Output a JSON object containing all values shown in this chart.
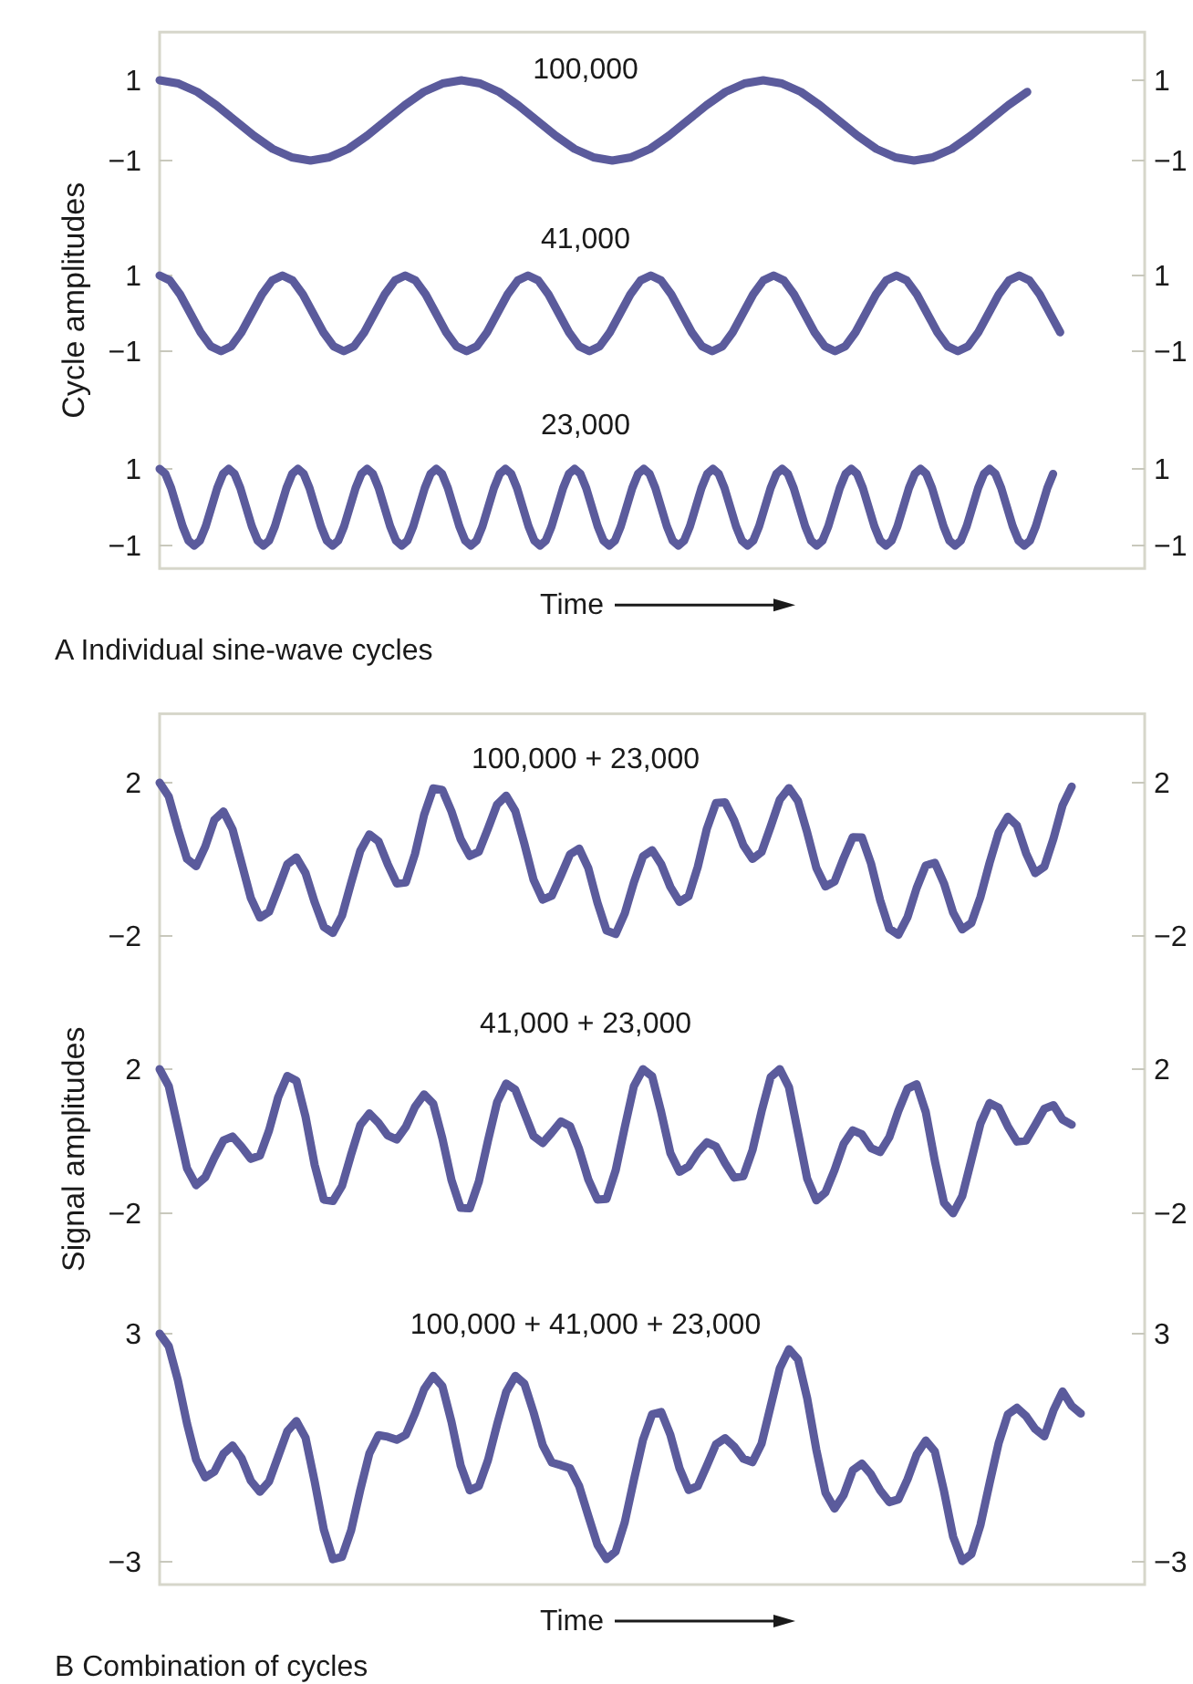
{
  "chart_data": [
    {
      "type": "line",
      "title": "100,000",
      "ylim": [
        -1,
        2.2
      ],
      "yticks": [
        -1,
        1
      ],
      "y2lim": [
        -1,
        2.2
      ],
      "y2ticks": [
        -1,
        1
      ],
      "categories": [
        null,
        null,
        null,
        null,
        null,
        null,
        null,
        null,
        null,
        null,
        null,
        null,
        null,
        null,
        null,
        null,
        null,
        null,
        null,
        null,
        null,
        null,
        null,
        null,
        null,
        null,
        null,
        null,
        null,
        null,
        null,
        null,
        null,
        null,
        null,
        null,
        null,
        null,
        null,
        null,
        null,
        null,
        null,
        null,
        null,
        null,
        null
      ],
      "series": [
        {
          "color": "#5b5b9c",
          "values": [
            1,
            0.92,
            0.71,
            0.38,
            0,
            -0.38,
            -0.71,
            -0.92,
            -1,
            -0.92,
            -0.71,
            -0.38,
            0,
            0.38,
            0.71,
            0.92,
            1,
            0.92,
            0.71,
            0.38,
            0,
            -0.38,
            -0.71,
            -0.92,
            -1,
            -0.92,
            -0.71,
            -0.38,
            0,
            0.38,
            0.71,
            0.92,
            1,
            0.92,
            0.71,
            0.38,
            0,
            -0.38,
            -0.71,
            -0.92,
            -1,
            -0.92,
            -0.71,
            -0.38,
            0,
            0.38,
            0.71
          ]
        }
      ]
    },
    {
      "type": "line",
      "title": "41,000",
      "ylabel": "Cycle amplitudes",
      "ylim": [
        -1,
        1
      ],
      "yticks": [
        -1,
        1
      ],
      "y2lim": [
        -1,
        1
      ],
      "y2ticks": [
        -1,
        1
      ],
      "categories": [
        null,
        null,
        null,
        null,
        null,
        null,
        null,
        null,
        null,
        null,
        null,
        null,
        null,
        null,
        null,
        null,
        null,
        null,
        null,
        null,
        null,
        null,
        null,
        null,
        null,
        null,
        null,
        null,
        null,
        null,
        null,
        null,
        null,
        null,
        null,
        null,
        null,
        null,
        null,
        null,
        null,
        null,
        null,
        null,
        null,
        null,
        null,
        null,
        null,
        null,
        null,
        null,
        null,
        null,
        null,
        null,
        null,
        null,
        null,
        null,
        null,
        null,
        null,
        null,
        null,
        null,
        null,
        null,
        null,
        null,
        null,
        null,
        null,
        null,
        null,
        null,
        null,
        null,
        null,
        null,
        null,
        null,
        null,
        null,
        null,
        null,
        null,
        null,
        null
      ],
      "series": [
        {
          "color": "#5b5b9c",
          "values": [
            1,
            0.87,
            0.5,
            0,
            -0.5,
            -0.87,
            -1,
            -0.87,
            -0.5,
            0,
            0.5,
            0.87,
            1,
            0.87,
            0.5,
            0,
            -0.5,
            -0.87,
            -1,
            -0.87,
            -0.5,
            0,
            0.5,
            0.87,
            1,
            0.87,
            0.5,
            0,
            -0.5,
            -0.87,
            -1,
            -0.87,
            -0.5,
            0,
            0.5,
            0.87,
            1,
            0.87,
            0.5,
            0,
            -0.5,
            -0.87,
            -1,
            -0.87,
            -0.5,
            0,
            0.5,
            0.87,
            1,
            0.87,
            0.5,
            0,
            -0.5,
            -0.87,
            -1,
            -0.87,
            -0.5,
            0,
            0.5,
            0.87,
            1,
            0.87,
            0.5,
            0,
            -0.5,
            -0.87,
            -1,
            -0.87,
            -0.5,
            0,
            0.5,
            0.87,
            1,
            0.87,
            0.5,
            0,
            -0.5,
            -0.87,
            -1,
            -0.87,
            -0.5,
            0,
            0.5,
            0.87,
            1,
            0.87,
            0.5,
            0,
            -0.5
          ]
        }
      ]
    },
    {
      "type": "line",
      "title": "23,000",
      "xlabel": "Time",
      "annotations": [
        "A Individual sine-wave cycles"
      ],
      "ylim": [
        -1.6,
        1
      ],
      "yticks": [
        -1,
        1
      ],
      "y2lim": [
        -1.6,
        1
      ],
      "y2ticks": [
        -1,
        1
      ],
      "categories": [
        null,
        null,
        null,
        null,
        null,
        null,
        null,
        null,
        null,
        null,
        null,
        null,
        null,
        null,
        null,
        null,
        null,
        null,
        null,
        null,
        null,
        null,
        null,
        null,
        null,
        null,
        null,
        null,
        null,
        null,
        null,
        null,
        null,
        null,
        null,
        null,
        null,
        null,
        null,
        null,
        null,
        null,
        null,
        null,
        null,
        null,
        null,
        null,
        null,
        null,
        null,
        null,
        null,
        null,
        null,
        null,
        null,
        null,
        null,
        null,
        null,
        null,
        null,
        null,
        null,
        null,
        null,
        null,
        null,
        null,
        null,
        null,
        null,
        null,
        null,
        null,
        null,
        null,
        null,
        null,
        null,
        null,
        null,
        null,
        null,
        null,
        null,
        null,
        null,
        null,
        null,
        null,
        null,
        null,
        null,
        null,
        null,
        null,
        null,
        null,
        null,
        null,
        null,
        null,
        null,
        null,
        null,
        null,
        null,
        null,
        null,
        null,
        null,
        null,
        null,
        null,
        null,
        null,
        null,
        null,
        null,
        null,
        null,
        null,
        null,
        null,
        null,
        null,
        null,
        null,
        null,
        null,
        null,
        null,
        null,
        null,
        null,
        null,
        null,
        null,
        null,
        null,
        null,
        null,
        null,
        null,
        null,
        null,
        null,
        null,
        null,
        null,
        null,
        null,
        null,
        null
      ],
      "series": [
        {
          "color": "#5b5b9c",
          "values": [
            1,
            0.87,
            0.5,
            0,
            -0.5,
            -0.87,
            -1,
            -0.87,
            -0.5,
            0,
            0.5,
            0.87,
            1,
            0.87,
            0.5,
            0,
            -0.5,
            -0.87,
            -1,
            -0.87,
            -0.5,
            0,
            0.5,
            0.87,
            1,
            0.87,
            0.5,
            0,
            -0.5,
            -0.87,
            -1,
            -0.87,
            -0.5,
            0,
            0.5,
            0.87,
            1,
            0.87,
            0.5,
            0,
            -0.5,
            -0.87,
            -1,
            -0.87,
            -0.5,
            0,
            0.5,
            0.87,
            1,
            0.87,
            0.5,
            0,
            -0.5,
            -0.87,
            -1,
            -0.87,
            -0.5,
            0,
            0.5,
            0.87,
            1,
            0.87,
            0.5,
            0,
            -0.5,
            -0.87,
            -1,
            -0.87,
            -0.5,
            0,
            0.5,
            0.87,
            1,
            0.87,
            0.5,
            0,
            -0.5,
            -0.87,
            -1,
            -0.87,
            -0.5,
            0,
            0.5,
            0.87,
            1,
            0.87,
            0.5,
            0,
            -0.5,
            -0.87,
            -1,
            -0.87,
            -0.5,
            0,
            0.5,
            0.87,
            1,
            0.87,
            0.5,
            0,
            -0.5,
            -0.87,
            -1,
            -0.87,
            -0.5,
            0,
            0.5,
            0.87,
            1,
            0.87,
            0.5,
            0,
            -0.5,
            -0.87,
            -1,
            -0.87,
            -0.5,
            0,
            0.5,
            0.87,
            1,
            0.87,
            0.5,
            0,
            -0.5,
            -0.87,
            -1,
            -0.87,
            -0.5,
            0,
            0.5,
            0.87,
            1,
            0.87,
            0.5,
            0,
            -0.5,
            -0.87,
            -1,
            -0.87,
            -0.5,
            0,
            0.5,
            0.87,
            1,
            0.87,
            0.5,
            0,
            -0.5,
            -0.87,
            -1,
            -0.87,
            -0.5,
            0,
            0.5,
            0.87
          ]
        }
      ]
    },
    {
      "type": "line",
      "title": "100,000 + 23,000",
      "ylim": [
        -2,
        3.8
      ],
      "yticks": [
        -2,
        2
      ],
      "y2lim": [
        -2,
        3.8
      ],
      "y2ticks": [
        -2,
        2
      ],
      "categories": [
        null,
        null,
        null,
        null,
        null,
        null,
        null,
        null,
        null,
        null,
        null,
        null,
        null,
        null,
        null,
        null,
        null,
        null,
        null,
        null,
        null,
        null,
        null,
        null,
        null,
        null,
        null,
        null,
        null,
        null,
        null,
        null,
        null,
        null,
        null,
        null,
        null,
        null,
        null,
        null,
        null,
        null,
        null,
        null,
        null,
        null,
        null,
        null,
        null,
        null,
        null,
        null,
        null,
        null,
        null,
        null,
        null,
        null,
        null,
        null,
        null,
        null,
        null,
        null,
        null,
        null,
        null,
        null,
        null,
        null,
        null,
        null,
        null,
        null,
        null,
        null,
        null,
        null,
        null,
        null,
        null,
        null,
        null,
        null,
        null,
        null,
        null,
        null,
        null,
        null,
        null,
        null,
        null,
        null,
        null,
        null,
        null,
        null,
        null,
        null,
        null
      ],
      "series": [
        {
          "color": "#5b5b9c",
          "values": [
            2,
            1.64,
            0.79,
            0.01,
            -0.18,
            0.33,
            1.03,
            1.25,
            0.78,
            -0.11,
            -1.01,
            -1.52,
            -1.37,
            -0.76,
            -0.13,
            0.05,
            -0.36,
            -1.12,
            -1.76,
            -1.92,
            -1.47,
            -0.61,
            0.22,
            0.65,
            0.47,
            -0.12,
            -0.63,
            -0.6,
            0.14,
            1.16,
            1.85,
            1.81,
            1.25,
            0.53,
            0.09,
            0.2,
            0.8,
            1.43,
            1.66,
            1.26,
            0.4,
            -0.53,
            -1.05,
            -0.95,
            -0.42,
            0.13,
            0.28,
            -0.23,
            -1.13,
            -1.86,
            -1.95,
            -1.41,
            -0.6,
            0.08,
            0.24,
            -0.13,
            -0.72,
            -1.11,
            -0.96,
            -0.2,
            0.8,
            1.47,
            1.49,
            1.01,
            0.37,
            0.01,
            0.19,
            0.86,
            1.56,
            1.86,
            1.52,
            0.7,
            -0.22,
            -0.71,
            -0.58,
            0.03,
            0.58,
            0.57,
            -0.11,
            -1.07,
            -1.81,
            -1.97,
            -1.51,
            -0.75,
            -0.16,
            -0.09,
            -0.63,
            -1.39,
            -1.83,
            -1.66,
            -0.98,
            -0.09,
            0.71,
            1.11,
            0.88,
            0.16,
            -0.36,
            -0.19,
            0.54,
            1.41,
            1.9
          ]
        }
      ]
    },
    {
      "type": "line",
      "title": "41,000 + 23,000",
      "ylabel": "Signal amplitudes",
      "ylim": [
        -2,
        2
      ],
      "yticks": [
        -2,
        2
      ],
      "y2lim": [
        -2,
        2
      ],
      "y2ticks": [
        -2,
        2
      ],
      "categories": [
        null,
        null,
        null,
        null,
        null,
        null,
        null,
        null,
        null,
        null,
        null,
        null,
        null,
        null,
        null,
        null,
        null,
        null,
        null,
        null,
        null,
        null,
        null,
        null,
        null,
        null,
        null,
        null,
        null,
        null,
        null,
        null,
        null,
        null,
        null,
        null,
        null,
        null,
        null,
        null,
        null,
        null,
        null,
        null,
        null,
        null,
        null,
        null,
        null,
        null,
        null,
        null,
        null,
        null,
        null,
        null,
        null,
        null,
        null,
        null,
        null,
        null,
        null,
        null,
        null,
        null,
        null,
        null,
        null,
        null,
        null,
        null,
        null,
        null,
        null,
        null,
        null,
        null,
        null,
        null,
        null,
        null,
        null,
        null,
        null,
        null,
        null,
        null,
        null,
        null,
        null,
        null,
        null,
        null,
        null,
        null,
        null,
        null,
        null,
        null,
        null
      ],
      "series": [
        {
          "color": "#5b5b9c",
          "values": [
            2,
            1.53,
            0.39,
            -0.75,
            -1.22,
            -1,
            -0.46,
            0.02,
            0.13,
            -0.16,
            -0.49,
            -0.4,
            0.3,
            1.22,
            1.81,
            1.68,
            0.68,
            -0.66,
            -1.62,
            -1.66,
            -1.24,
            -0.37,
            0.45,
            0.77,
            0.51,
            0.16,
            0.05,
            0.4,
            0.95,
            1.3,
            1.04,
            0.08,
            -1.08,
            -1.85,
            -1.86,
            -1.12,
            0.01,
            1.08,
            1.6,
            1.43,
            0.78,
            0.14,
            -0.05,
            0.24,
            0.55,
            0.42,
            -0.22,
            -1.06,
            -1.62,
            -1.6,
            -0.81,
            0.39,
            1.53,
            2,
            1.8,
            0.8,
            -0.33,
            -0.85,
            -0.7,
            -0.31,
            -0.03,
            -0.15,
            -0.61,
            -1.01,
            -0.97,
            -0.25,
            0.83,
            1.78,
            2,
            1.5,
            0.23,
            -1.04,
            -1.64,
            -1.42,
            -0.8,
            -0.07,
            0.3,
            0.19,
            -0.19,
            -0.3,
            0.11,
            0.84,
            1.46,
            1.58,
            0.81,
            -0.55,
            -1.71,
            -2,
            -1.52,
            -0.52,
            0.49,
            1.06,
            0.93,
            0.41,
            -0.01,
            0.02,
            0.45,
            0.9,
            1,
            0.6,
            0.46
          ]
        }
      ]
    },
    {
      "type": "line",
      "title": "100,000 + 41,000 + 23,000",
      "xlabel": "Time",
      "annotations": [
        "B Combination of cycles"
      ],
      "ylim": [
        -3.6,
        3
      ],
      "yticks": [
        -3,
        3
      ],
      "y2lim": [
        -3.6,
        3
      ],
      "y2ticks": [
        -3,
        3
      ],
      "categories": [
        null,
        null,
        null,
        null,
        null,
        null,
        null,
        null,
        null,
        null,
        null,
        null,
        null,
        null,
        null,
        null,
        null,
        null,
        null,
        null,
        null,
        null,
        null,
        null,
        null,
        null,
        null,
        null,
        null,
        null,
        null,
        null,
        null,
        null,
        null,
        null,
        null,
        null,
        null,
        null,
        null,
        null,
        null,
        null,
        null,
        null,
        null,
        null,
        null,
        null,
        null,
        null,
        null,
        null,
        null,
        null,
        null,
        null,
        null,
        null,
        null,
        null,
        null,
        null,
        null,
        null,
        null,
        null,
        null,
        null,
        null,
        null,
        null,
        null,
        null,
        null,
        null,
        null,
        null,
        null,
        null,
        null,
        null,
        null,
        null,
        null,
        null,
        null,
        null,
        null,
        null,
        null,
        null,
        null,
        null,
        null,
        null,
        null,
        null,
        null,
        null,
        null
      ],
      "series": [
        {
          "color": "#5b5b9c",
          "values": [
            3,
            2.67,
            1.78,
            0.64,
            -0.31,
            -0.78,
            -0.63,
            -0.16,
            0.06,
            -0.28,
            -0.87,
            -1.16,
            -0.89,
            -0.23,
            0.43,
            0.7,
            0.26,
            -0.89,
            -2.15,
            -2.93,
            -2.87,
            -2.17,
            -1.11,
            -0.15,
            0.33,
            0.29,
            0.21,
            0.34,
            0.9,
            1.54,
            1.89,
            1.62,
            0.68,
            -0.46,
            -1.12,
            -1.01,
            -0.33,
            0.61,
            1.47,
            1.89,
            1.68,
            0.93,
            0.07,
            -0.39,
            -0.46,
            -0.54,
            -1.01,
            -1.79,
            -2.55,
            -2.93,
            -2.73,
            -1.96,
            -0.85,
            0.21,
            0.88,
            0.94,
            0.34,
            -0.54,
            -1.11,
            -1.01,
            -0.47,
            0.09,
            0.25,
            0.03,
            -0.29,
            -0.38,
            0.11,
            1.1,
            2.09,
            2.59,
            2.32,
            1.3,
            -0.05,
            -1.18,
            -1.6,
            -1.24,
            -0.59,
            -0.42,
            -0.7,
            -1.12,
            -1.43,
            -1.36,
            -0.83,
            -0.18,
            0.19,
            -0.1,
            -1.14,
            -2.34,
            -2.98,
            -2.8,
            -2.03,
            -0.93,
            0.13,
            0.88,
            1.05,
            0.83,
            0.49,
            0.3,
            0.98,
            1.48,
            1.1,
            0.9
          ]
        }
      ]
    }
  ]
}
